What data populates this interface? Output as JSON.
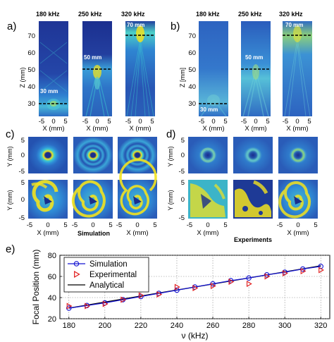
{
  "panel_a": {
    "letter": "a)",
    "freqs": [
      "180 kHz",
      "250 kHz",
      "320 kHz"
    ],
    "focus_labels": [
      "30 mm",
      "50 mm",
      "70 mm"
    ],
    "y_ticks": [
      "30",
      "40",
      "50",
      "60",
      "70"
    ],
    "y_label": "Z (mm)",
    "x_ticks": [
      "-5",
      "0",
      "5"
    ],
    "x_label": "X (mm)"
  },
  "panel_b": {
    "letter": "b)",
    "freqs": [
      "180 kHz",
      "250 kHz",
      "320 kHz"
    ],
    "focus_labels": [
      "30 mm",
      "50 mm",
      "70 mm"
    ],
    "y_ticks": [
      "30",
      "40",
      "50",
      "60",
      "70"
    ],
    "y_label": "Z [mm]",
    "x_ticks": [
      "-5",
      "0",
      "5"
    ],
    "x_label": "X (mm)"
  },
  "panel_c": {
    "letter": "c)",
    "y_ticks": [
      "5",
      "0",
      "-5"
    ],
    "y_label": "Y (mm)",
    "x_ticks": [
      "-5",
      "0",
      "5"
    ],
    "x_label": "X (mm)",
    "caption": "Simulation"
  },
  "panel_d": {
    "letter": "d)",
    "y_ticks": [
      "5",
      "0",
      "-5"
    ],
    "y_label": "Y (mm)",
    "x_ticks": [
      "-5",
      "0",
      "5"
    ],
    "x_label": "X (mm)",
    "caption": "Experiments"
  },
  "panel_e": {
    "letter": "e)"
  },
  "colors": {
    "map_dark": "#1a2e8c",
    "map_mid": "#2f8fd8",
    "map_cyan": "#3cc8d0",
    "map_yellow": "#f2e21f",
    "sim_line": "#1414d2",
    "exp_marker": "#e01818",
    "analytical_line": "#000000"
  },
  "chart_data": {
    "type": "line",
    "xlabel": "ν (kHz)",
    "ylabel": "Focal Position (mm)",
    "xlim": [
      175,
      325
    ],
    "ylim": [
      20,
      80
    ],
    "x_ticks": [
      180,
      200,
      220,
      240,
      260,
      280,
      300,
      320
    ],
    "y_ticks": [
      20,
      40,
      60,
      80
    ],
    "grid": true,
    "legend_position": "top-left",
    "series": [
      {
        "name": "Simulation",
        "style": "line-circle",
        "color": "#1414d2",
        "x": [
          180,
          190,
          200,
          210,
          220,
          230,
          240,
          250,
          260,
          270,
          280,
          290,
          300,
          310,
          320
        ],
        "y": [
          30,
          32.5,
          35,
          38,
          41,
          44,
          47,
          50,
          53,
          56,
          58.5,
          61.5,
          64,
          67,
          69.5
        ]
      },
      {
        "name": "Experimental",
        "style": "triangle",
        "color": "#e01818",
        "x": [
          180,
          190,
          200,
          210,
          220,
          230,
          240,
          250,
          260,
          270,
          280,
          290,
          300,
          310,
          320
        ],
        "y": [
          32,
          32,
          34,
          38,
          42,
          43,
          50,
          49,
          51,
          55,
          53,
          60,
          63,
          65,
          66
        ]
      },
      {
        "name": "Analytical",
        "style": "line",
        "color": "#000000",
        "x": [
          180,
          320
        ],
        "y": [
          30,
          70
        ]
      }
    ]
  }
}
